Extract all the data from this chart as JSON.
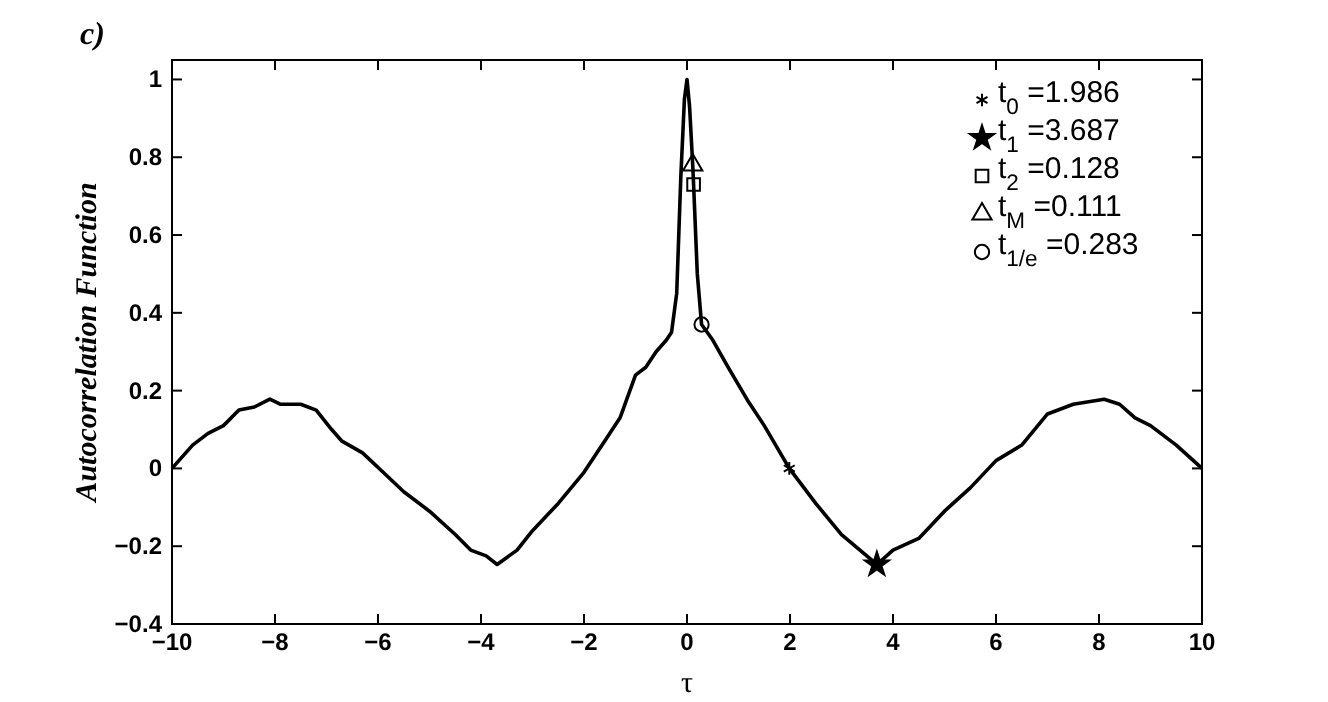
{
  "chart_data": {
    "type": "line",
    "title": "c)",
    "xlabel": "τ",
    "ylabel": "Autocorrelation Function",
    "xlim": [
      -10,
      10
    ],
    "xticks": [
      -10,
      -8,
      -6,
      -4,
      -2,
      0,
      2,
      4,
      6,
      8,
      10
    ],
    "ylim": [
      -0.4,
      1.05
    ],
    "yticks": [
      -0.4,
      -0.2,
      0,
      0.2,
      0.4,
      0.6,
      0.8,
      1
    ],
    "grid": false,
    "legend": "top right",
    "series": [
      {
        "color": "#000000",
        "line_style": "solid",
        "x": [
          -10,
          -9.6,
          -9.3,
          -9.0,
          -8.7,
          -8.4,
          -8.1,
          -7.9,
          -7.5,
          -7.2,
          -6.9,
          -6.7,
          -6.3,
          -5.9,
          -5.5,
          -5.0,
          -4.5,
          -4.2,
          -3.9,
          -3.687,
          -3.3,
          -3.0,
          -2.5,
          -2.0,
          -1.6,
          -1.3,
          -1.0,
          -0.8,
          -0.6,
          -0.4,
          -0.3,
          -0.2,
          -0.12,
          -0.05,
          0,
          0.05,
          0.111,
          0.128,
          0.2,
          0.283,
          0.5,
          0.8,
          1.2,
          1.5,
          1.986,
          2.5,
          3.0,
          3.687,
          4.0,
          4.5,
          5.0,
          5.5,
          6.0,
          6.5,
          7.0,
          7.5,
          8.1,
          8.4,
          8.7,
          9.0,
          9.5,
          10
        ],
        "values": [
          0,
          0.06,
          0.09,
          0.11,
          0.15,
          0.158,
          0.178,
          0.165,
          0.165,
          0.15,
          0.1,
          0.07,
          0.04,
          -0.01,
          -0.06,
          -0.11,
          -0.17,
          -0.21,
          -0.225,
          -0.247,
          -0.21,
          -0.16,
          -0.09,
          -0.01,
          0.07,
          0.13,
          0.24,
          0.26,
          0.3,
          0.33,
          0.35,
          0.45,
          0.75,
          0.95,
          1.0,
          0.93,
          0.78,
          0.73,
          0.5,
          0.37,
          0.33,
          0.26,
          0.17,
          0.11,
          0,
          -0.09,
          -0.17,
          -0.247,
          -0.21,
          -0.18,
          -0.11,
          -0.05,
          0.02,
          0.06,
          0.14,
          0.165,
          0.178,
          0.165,
          0.13,
          0.11,
          0.06,
          0
        ]
      },
      {
        "type": "scatter",
        "name": "t$_{0}$ =1.986",
        "color": "#000000",
        "marker": "cross",
        "x": [
          1.986
        ],
        "values": [
          0
        ]
      },
      {
        "type": "scatter",
        "name": "t$_{1}$ =3.687",
        "color": "#000000",
        "marker": "star",
        "x": [
          3.687
        ],
        "values": [
          -0.247
        ]
      },
      {
        "type": "scatter",
        "name": "t$_{2}$ =0.128",
        "color": "#000000",
        "marker": "square",
        "x": [
          0.128
        ],
        "values": [
          0.73
        ]
      },
      {
        "type": "scatter",
        "name": "t$_{M}$ =0.111",
        "color": "#000000",
        "marker": "triangle",
        "x": [
          0.111
        ],
        "values": [
          0.78
        ]
      },
      {
        "type": "scatter",
        "name": "t$_{1/e}$ =0.283",
        "color": "#000000",
        "marker": "circle",
        "x": [
          0.283
        ],
        "values": [
          0.37
        ]
      }
    ]
  }
}
